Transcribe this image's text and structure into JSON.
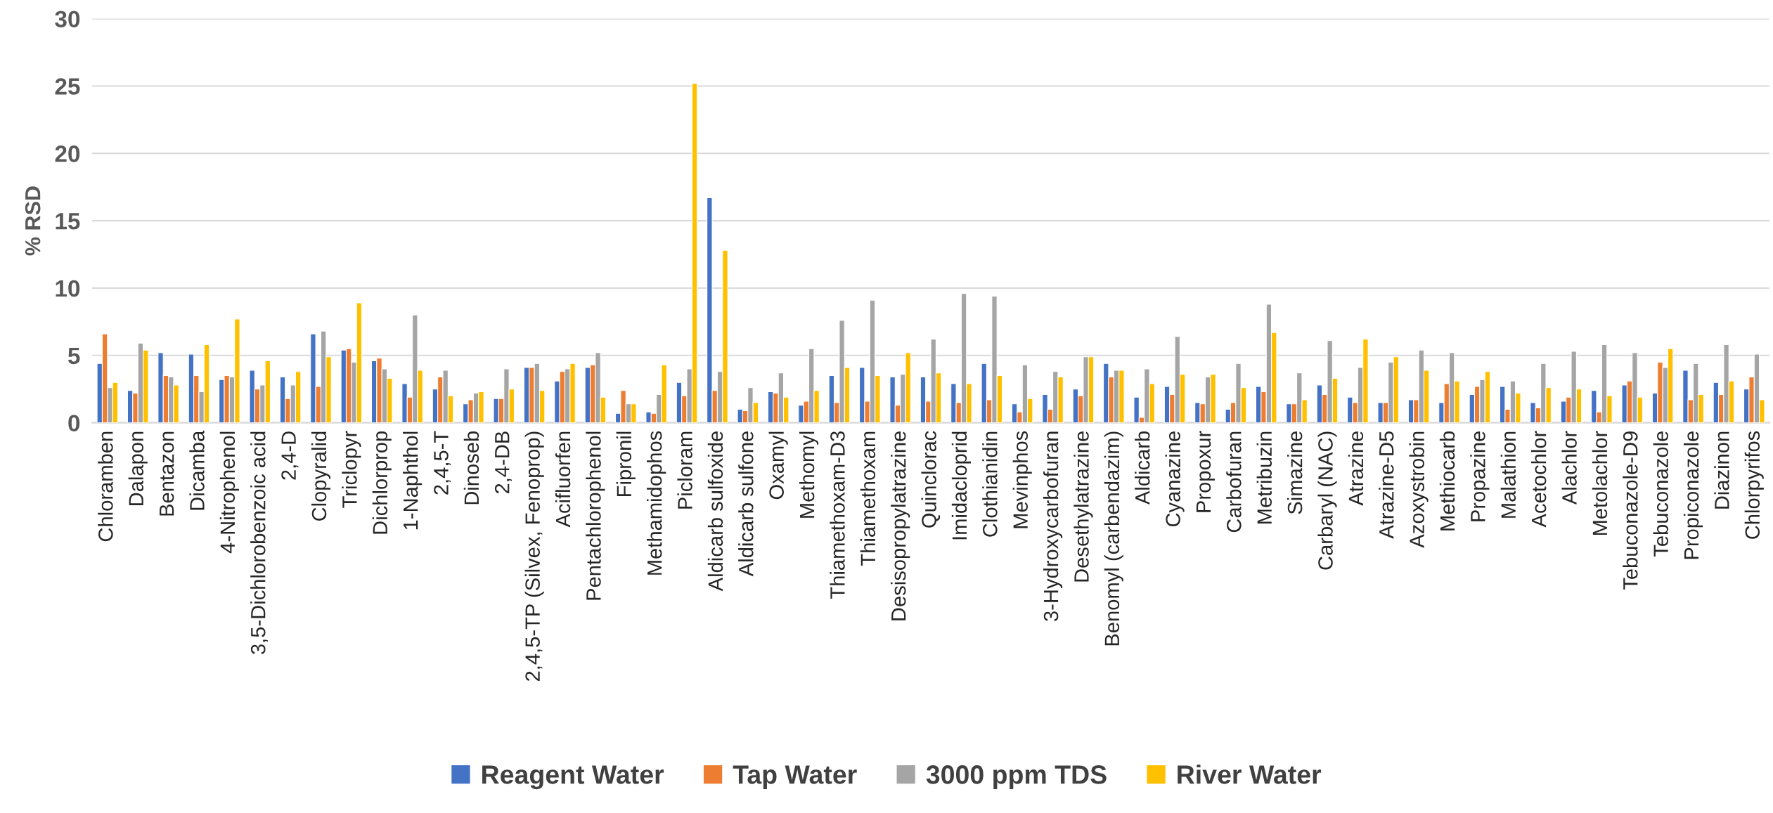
{
  "chart_data": {
    "type": "bar",
    "ylabel": "% RSD",
    "categories": [
      "Chloramben",
      "Dalapon",
      "Bentazon",
      "Dicamba",
      "4-Nitrophenol",
      "3,5-Dichlorobenzoic acid",
      "2,4-D",
      "Clopyralid",
      "Triclopyr",
      "Dichlorprop",
      "1-Naphthol",
      "2,4,5-T",
      "Dinoseb",
      "2,4-DB",
      "2,4,5-TP (Silvex, Fenoprop)",
      "Acifluorfen",
      "Pentachlorophenol",
      "Fipronil",
      "Methamidophos",
      "Picloram",
      "Aldicarb sulfoxide",
      "Aldicarb sulfone",
      "Oxamyl",
      "Methomyl",
      "Thiamethoxam-D3",
      "Thiamethoxam",
      "Desisopropylatrazine",
      "Quinclorac",
      "Imidacloprid",
      "Clothianidin",
      "Mevinphos",
      "3-Hydroxycarbofuran",
      "Desethylatrazine",
      "Benomyl (carbendazim)",
      "Aldicarb",
      "Cyanazine",
      "Propoxur",
      "Carbofuran",
      "Metribuzin",
      "Simazine",
      "Carbaryl (NAC)",
      "Atrazine",
      "Atrazine-D5",
      "Azoxystrobin",
      "Methiocarb",
      "Propazine",
      "Malathion",
      "Acetochlor",
      "Alachlor",
      "Metolachlor",
      "Tebuconazole-D9",
      "Tebuconazole",
      "Propiconazole",
      "Diazinon",
      "Chlorpyrifos"
    ],
    "series": [
      {
        "name": "Reagent Water",
        "color": "#4472c4",
        "values": [
          4.4,
          2.4,
          5.2,
          5.1,
          3.2,
          3.9,
          3.4,
          6.6,
          5.4,
          4.6,
          2.9,
          2.5,
          1.4,
          1.8,
          4.1,
          3.1,
          4.1,
          0.7,
          0.8,
          3.0,
          16.7,
          1.0,
          2.3,
          1.3,
          3.5,
          4.1,
          3.4,
          3.4,
          2.9,
          4.4,
          1.4,
          2.1,
          2.5,
          4.4,
          1.9,
          2.7,
          1.5,
          1.0,
          2.7,
          1.4,
          2.8,
          1.9,
          1.5,
          1.7,
          1.5,
          2.1,
          2.7,
          1.5,
          1.6,
          2.4,
          2.8,
          2.2,
          3.9,
          3.0,
          2.5
        ]
      },
      {
        "name": "Tap Water",
        "color": "#ed7d31",
        "values": [
          6.6,
          2.2,
          3.5,
          3.5,
          3.5,
          2.5,
          1.8,
          2.7,
          5.5,
          4.8,
          1.9,
          3.4,
          1.7,
          1.8,
          4.1,
          3.8,
          4.3,
          2.4,
          0.7,
          2.0,
          2.4,
          0.9,
          2.2,
          1.6,
          1.5,
          1.6,
          1.3,
          1.6,
          1.5,
          1.7,
          0.8,
          1.0,
          2.0,
          3.4,
          0.4,
          2.1,
          1.4,
          1.5,
          2.3,
          1.4,
          2.1,
          1.5,
          1.5,
          1.7,
          2.9,
          2.7,
          1.0,
          1.1,
          1.9,
          0.8,
          3.1,
          4.5,
          1.7,
          2.1,
          3.4
        ]
      },
      {
        "name": "3000 ppm TDS",
        "color": "#a5a5a5",
        "values": [
          2.6,
          5.9,
          3.4,
          2.3,
          3.4,
          2.8,
          2.8,
          6.8,
          4.5,
          4.0,
          8.0,
          3.9,
          2.2,
          4.0,
          4.4,
          4.0,
          5.2,
          1.4,
          2.1,
          4.0,
          3.8,
          2.6,
          3.7,
          5.5,
          7.6,
          9.1,
          3.6,
          6.2,
          9.6,
          9.4,
          4.3,
          3.8,
          4.9,
          3.9,
          4.0,
          6.4,
          3.4,
          4.4,
          8.8,
          3.7,
          6.1,
          4.1,
          4.5,
          5.4,
          5.2,
          3.2,
          3.1,
          4.4,
          5.3,
          5.8,
          5.2,
          4.1,
          4.4,
          5.8,
          5.1
        ]
      },
      {
        "name": "River Water",
        "color": "#ffc000",
        "values": [
          3.0,
          5.4,
          2.8,
          5.8,
          7.7,
          4.6,
          3.8,
          4.9,
          8.9,
          3.3,
          3.9,
          2.0,
          2.3,
          2.5,
          2.4,
          4.4,
          1.9,
          1.4,
          4.3,
          25.2,
          12.8,
          1.5,
          1.9,
          2.4,
          4.1,
          3.5,
          5.2,
          3.7,
          2.9,
          3.5,
          1.8,
          3.4,
          4.9,
          3.9,
          2.9,
          3.6,
          3.6,
          2.6,
          6.7,
          1.7,
          3.3,
          6.2,
          4.9,
          3.9,
          3.1,
          3.8,
          2.2,
          2.6,
          2.5,
          2.0,
          1.9,
          5.5,
          2.1,
          3.1,
          1.7
        ]
      }
    ],
    "ylim": [
      0,
      30
    ],
    "yticks": [
      0,
      5,
      10,
      15,
      20,
      25,
      30
    ],
    "grid": "y",
    "legend": "bottom"
  }
}
